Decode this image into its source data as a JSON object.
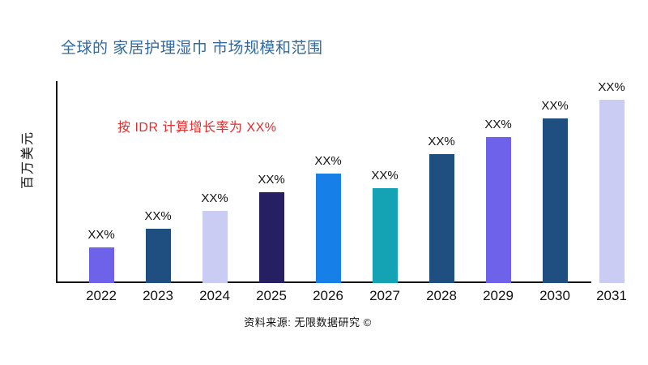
{
  "title": {
    "text": "全球的 家居护理湿巾 市场规模和范围"
  },
  "footer": {
    "source_text": "资料来源: 无限数据研究 ©"
  },
  "colors": {
    "title": "#336A9F",
    "annotation": "#EA2A2A",
    "axis": "#111111",
    "text": "#111111"
  },
  "chart_data": {
    "type": "bar",
    "title": "全球的 家居护理湿巾 市场规模和范围",
    "ylabel": "百万美元",
    "xlabel": "",
    "annotation": "按 IDR 计算增长率为 XX%",
    "categories": [
      "2022",
      "2023",
      "2024",
      "2025",
      "2026",
      "2027",
      "2028",
      "2029",
      "2030",
      "2031"
    ],
    "values": [
      44,
      67,
      89,
      112,
      135,
      117,
      159,
      180,
      203,
      226
    ],
    "value_labels": [
      "XX%",
      "XX%",
      "XX%",
      "XX%",
      "XX%",
      "XX%",
      "XX%",
      "XX%",
      "XX%",
      "XX%"
    ],
    "bar_colors": [
      "#6E62EA",
      "#1F4E80",
      "#CACCF3",
      "#262063",
      "#177FE8",
      "#13A3B5",
      "#1F4E80",
      "#6E62EA",
      "#1F4E80",
      "#CACCF3"
    ],
    "grid": "off",
    "legend": "none",
    "y_ticks": [],
    "source": "资料来源: 无限数据研究 ©"
  }
}
